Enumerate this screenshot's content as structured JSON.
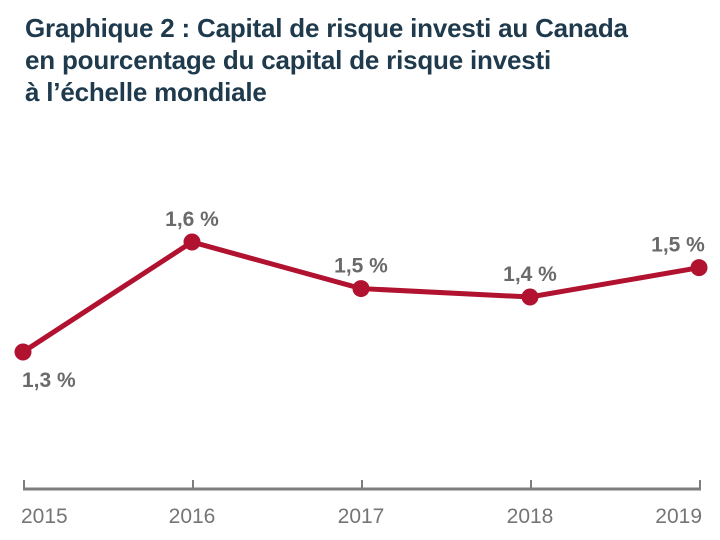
{
  "chart": {
    "title_lines": [
      "Graphique 2 : Capital de risque investi au Canada",
      "en pourcentage du capital de risque investi",
      "à l’échelle mondiale"
    ]
  },
  "chart_data": {
    "type": "line",
    "title": "Graphique 2 : Capital de risque investi au Canada en pourcentage du capital de risque investi à l’échelle mondiale",
    "categories": [
      "2015",
      "2016",
      "2017",
      "2018",
      "2019"
    ],
    "values": [
      1.3,
      1.6,
      1.5,
      1.4,
      1.5
    ],
    "point_labels": [
      "1,3 %",
      "1,6 %",
      "1,5 %",
      "1,4 %",
      "1,5 %"
    ],
    "plot_values": [
      1.3,
      1.6,
      1.473,
      1.45,
      1.53
    ],
    "unit": "%",
    "xlabel": "",
    "ylabel": "",
    "ylim": [
      1.2,
      1.7
    ],
    "grid": false,
    "legend_position": "none",
    "colors": {
      "line": "#b0122f",
      "point": "#b0122f",
      "point_label": "#6a6a6a",
      "axis": "#7d7d7d",
      "axis_label": "#757575",
      "title": "#1e3a4c",
      "background": "#ffffff"
    }
  }
}
